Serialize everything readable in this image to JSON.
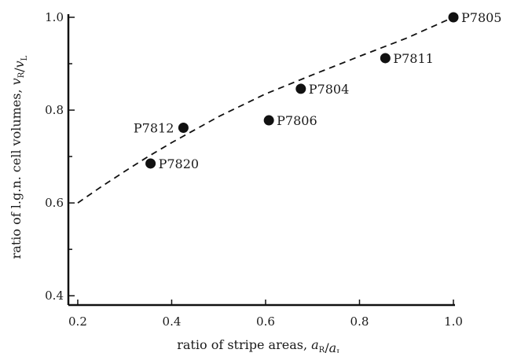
{
  "chart_data": {
    "type": "scatter",
    "xlabel": "ratio of stripe areas, a_R/a_L",
    "ylabel": "ratio of l.g.n. cell volumes, v_R/v_L",
    "xlim": [
      0.18,
      1.0
    ],
    "ylim": [
      0.38,
      1.0
    ],
    "x_ticks": [
      {
        "value": 0.2,
        "label": "0.2"
      },
      {
        "value": 0.4,
        "label": "0.4"
      },
      {
        "value": 0.6,
        "label": "0.6"
      },
      {
        "value": 0.8,
        "label": "0.8"
      },
      {
        "value": 1.0,
        "label": "1.0"
      }
    ],
    "y_ticks": [
      {
        "value": 0.4,
        "label": "0.4"
      },
      {
        "value": 0.6,
        "label": "0.6"
      },
      {
        "value": 0.8,
        "label": "0.8"
      },
      {
        "value": 1.0,
        "label": "1.0"
      }
    ],
    "minor_y_ticks": [
      0.5,
      0.7,
      0.9
    ],
    "points": [
      {
        "label": "P7820",
        "x": 0.355,
        "y": 0.685,
        "label_side": "right"
      },
      {
        "label": "P7812",
        "x": 0.425,
        "y": 0.762,
        "label_side": "left"
      },
      {
        "label": "P7806",
        "x": 0.607,
        "y": 0.778,
        "label_side": "right"
      },
      {
        "label": "P7804",
        "x": 0.675,
        "y": 0.846,
        "label_side": "right"
      },
      {
        "label": "P7811",
        "x": 0.855,
        "y": 0.912,
        "label_side": "right"
      },
      {
        "label": "P7805",
        "x": 1.0,
        "y": 1.0,
        "label_side": "right"
      }
    ],
    "fit_curve": {
      "style": "dashed",
      "x": [
        0.2,
        0.25,
        0.3,
        0.35,
        0.4,
        0.5,
        0.6,
        0.7,
        0.8,
        0.9,
        1.0
      ],
      "y": [
        0.6,
        0.635,
        0.668,
        0.7,
        0.73,
        0.786,
        0.835,
        0.876,
        0.916,
        0.955,
        1.0
      ]
    },
    "grid": false,
    "legend": "none"
  }
}
